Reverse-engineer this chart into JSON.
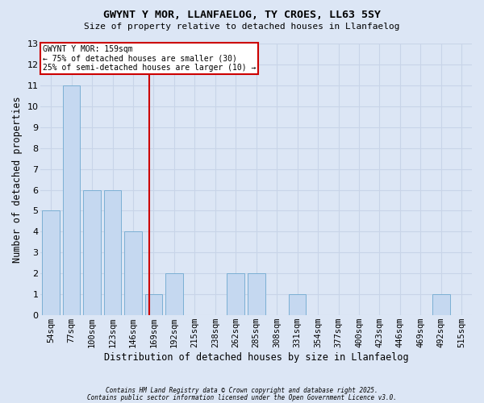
{
  "title_line1": "GWYNT Y MOR, LLANFAELOG, TY CROES, LL63 5SY",
  "title_line2": "Size of property relative to detached houses in Llanfaelog",
  "xlabel": "Distribution of detached houses by size in Llanfaelog",
  "ylabel": "Number of detached properties",
  "categories": [
    "54sqm",
    "77sqm",
    "100sqm",
    "123sqm",
    "146sqm",
    "169sqm",
    "192sqm",
    "215sqm",
    "238sqm",
    "262sqm",
    "285sqm",
    "308sqm",
    "331sqm",
    "354sqm",
    "377sqm",
    "400sqm",
    "423sqm",
    "446sqm",
    "469sqm",
    "492sqm",
    "515sqm"
  ],
  "values": [
    5,
    11,
    6,
    6,
    4,
    1,
    2,
    0,
    0,
    2,
    2,
    0,
    1,
    0,
    0,
    0,
    0,
    0,
    0,
    1,
    0
  ],
  "bar_color": "#c5d8f0",
  "bar_edgecolor": "#7bafd4",
  "vline_x": 4.77,
  "vline_color": "#cc0000",
  "ylim": [
    0,
    13
  ],
  "yticks": [
    0,
    1,
    2,
    3,
    4,
    5,
    6,
    7,
    8,
    9,
    10,
    11,
    12,
    13
  ],
  "annotation_title": "GWYNT Y MOR: 159sqm",
  "annotation_line1": "← 75% of detached houses are smaller (30)",
  "annotation_line2": "25% of semi-detached houses are larger (10) →",
  "annotation_box_color": "#ffffff",
  "annotation_box_edgecolor": "#cc0000",
  "grid_color": "#c8d4e8",
  "background_color": "#dce6f5",
  "footnote1": "Contains HM Land Registry data © Crown copyright and database right 2025.",
  "footnote2": "Contains public sector information licensed under the Open Government Licence v3.0."
}
